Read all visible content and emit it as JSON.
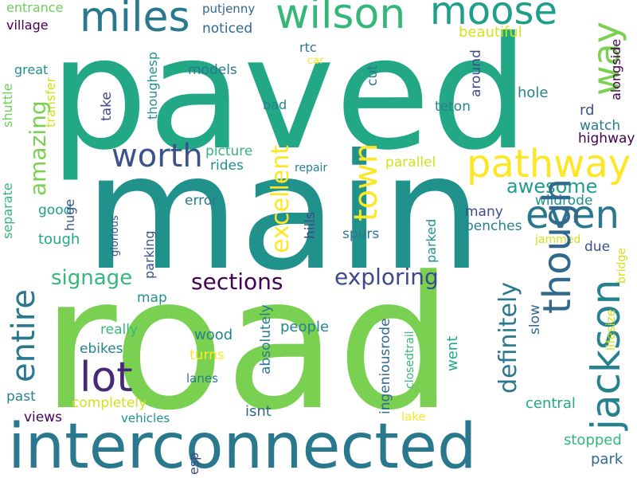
{
  "words": [
    {
      "id": "paved",
      "text": "paved",
      "color": "#22a884"
    },
    {
      "id": "main",
      "text": "main",
      "color": "#21918c"
    },
    {
      "id": "road",
      "text": "road",
      "color": "#7ad151"
    },
    {
      "id": "interconnected",
      "text": "interconnected",
      "color": "#2a788e"
    },
    {
      "id": "wilson",
      "text": "wilson",
      "color": "#35b779"
    },
    {
      "id": "miles",
      "text": "miles",
      "color": "#2a788e"
    },
    {
      "id": "moose",
      "text": "moose",
      "color": "#1f9e89"
    },
    {
      "id": "way",
      "text": "way",
      "color": "#7ad151"
    },
    {
      "id": "pathway",
      "text": "pathway",
      "color": "#fde725"
    },
    {
      "id": "even",
      "text": "even",
      "color": "#2a788e"
    },
    {
      "id": "worth",
      "text": "worth",
      "color": "#3b528b"
    },
    {
      "id": "town",
      "text": "town",
      "color": "#fde725"
    },
    {
      "id": "amazing",
      "text": "amazing",
      "color": "#7ad151"
    },
    {
      "id": "entire",
      "text": "entire",
      "color": "#2a788e"
    },
    {
      "id": "lot",
      "text": "lot",
      "color": "#482878"
    },
    {
      "id": "signage",
      "text": "signage",
      "color": "#35b779"
    },
    {
      "id": "sections",
      "text": "sections",
      "color": "#440154"
    },
    {
      "id": "exploring",
      "text": "exploring",
      "color": "#3e4989"
    },
    {
      "id": "excellent",
      "text": "excellent",
      "color": "#fde725"
    },
    {
      "id": "awesome",
      "text": "awesome",
      "color": "#1f9e89"
    },
    {
      "id": "though",
      "text": "though",
      "color": "#31688e"
    },
    {
      "id": "definitely",
      "text": "definitely",
      "color": "#2a788e"
    },
    {
      "id": "jackson",
      "text": "jackson",
      "color": "#26828e"
    },
    {
      "id": "entrance",
      "text": "entrance",
      "color": "#6ece58"
    },
    {
      "id": "village",
      "text": "village",
      "color": "#440154"
    },
    {
      "id": "great",
      "text": "great",
      "color": "#21918c"
    },
    {
      "id": "shuttle",
      "text": "shuttle",
      "color": "#6ece58"
    },
    {
      "id": "transfer",
      "text": "transfer",
      "color": "#d2e21b"
    },
    {
      "id": "models",
      "text": "models",
      "color": "#2a788e"
    },
    {
      "id": "take",
      "text": "take",
      "color": "#3e4989"
    },
    {
      "id": "thoughesp",
      "text": "thoughesp",
      "color": "#21918c"
    },
    {
      "id": "putjenny",
      "text": "putjenny",
      "color": "#31688e"
    },
    {
      "id": "noticed",
      "text": "noticed",
      "color": "#31688e"
    },
    {
      "id": "rtc",
      "text": "rtc",
      "color": "#2a788e"
    },
    {
      "id": "car",
      "text": "car",
      "color": "#fde725"
    },
    {
      "id": "cut",
      "text": "cut",
      "color": "#2a788e"
    },
    {
      "id": "bad",
      "text": "bad",
      "color": "#26828e"
    },
    {
      "id": "beautiful",
      "text": "beautiful",
      "color": "#d2e21b"
    },
    {
      "id": "around",
      "text": "around",
      "color": "#3e4989"
    },
    {
      "id": "alongside",
      "text": "alongside",
      "color": "#440154"
    },
    {
      "id": "hole",
      "text": "hole",
      "color": "#26828e"
    },
    {
      "id": "teton",
      "text": "teton",
      "color": "#26828e"
    },
    {
      "id": "rd",
      "text": "rd",
      "color": "#3b528b"
    },
    {
      "id": "watch",
      "text": "watch",
      "color": "#2a788e"
    },
    {
      "id": "highway",
      "text": "highway",
      "color": "#440154"
    },
    {
      "id": "picture",
      "text": "picture",
      "color": "#35b779"
    },
    {
      "id": "rides",
      "text": "rides",
      "color": "#21918c"
    },
    {
      "id": "repair",
      "text": "repair",
      "color": "#26828e"
    },
    {
      "id": "parallel",
      "text": "parallel",
      "color": "#d2e21b"
    },
    {
      "id": "separate",
      "text": "separate",
      "color": "#35b779"
    },
    {
      "id": "good",
      "text": "good",
      "color": "#1f9e89"
    },
    {
      "id": "huge",
      "text": "huge",
      "color": "#3b528b"
    },
    {
      "id": "glorious",
      "text": "glorious",
      "color": "#3b528b"
    },
    {
      "id": "parking",
      "text": "parking",
      "color": "#3b528b"
    },
    {
      "id": "error",
      "text": "error",
      "color": "#2a788e"
    },
    {
      "id": "hills",
      "text": "hills",
      "color": "#3e4989"
    },
    {
      "id": "parked",
      "text": "parked",
      "color": "#21918c"
    },
    {
      "id": "wildrode",
      "text": "wildrode",
      "color": "#21918c"
    },
    {
      "id": "many",
      "text": "many",
      "color": "#3e4989"
    },
    {
      "id": "benches",
      "text": "benches",
      "color": "#26828e"
    },
    {
      "id": "spurs",
      "text": "spurs",
      "color": "#2a788e"
    },
    {
      "id": "tough",
      "text": "tough",
      "color": "#22a884"
    },
    {
      "id": "jammed",
      "text": "jammed",
      "color": "#d2e21b"
    },
    {
      "id": "due",
      "text": "due",
      "color": "#3b528b"
    },
    {
      "id": "bridge",
      "text": "bridge",
      "color": "#d2e21b"
    },
    {
      "id": "map",
      "text": "map",
      "color": "#21918c"
    },
    {
      "id": "absolutely",
      "text": "absolutely",
      "color": "#2a788e"
    },
    {
      "id": "people",
      "text": "people",
      "color": "#26828e"
    },
    {
      "id": "slow",
      "text": "slow",
      "color": "#31688e"
    },
    {
      "id": "lifesize",
      "text": "lifesize",
      "color": "#d2e21b"
    },
    {
      "id": "really",
      "text": "really",
      "color": "#35b779"
    },
    {
      "id": "wood",
      "text": "wood",
      "color": "#26828e"
    },
    {
      "id": "turns",
      "text": "turns",
      "color": "#fde725"
    },
    {
      "id": "ebikes",
      "text": "ebikes",
      "color": "#26828e"
    },
    {
      "id": "lanes",
      "text": "lanes",
      "color": "#2a788e"
    },
    {
      "id": "ingeniousrode",
      "text": "ingeniousrode",
      "color": "#31688e"
    },
    {
      "id": "closedtrail",
      "text": "closedtrail",
      "color": "#35b779"
    },
    {
      "id": "went",
      "text": "went",
      "color": "#22a884"
    },
    {
      "id": "past",
      "text": "past",
      "color": "#26828e"
    },
    {
      "id": "completely",
      "text": "completely",
      "color": "#d2e21b"
    },
    {
      "id": "central",
      "text": "central",
      "color": "#22a884"
    },
    {
      "id": "views",
      "text": "views",
      "color": "#440154"
    },
    {
      "id": "vehicles",
      "text": "vehicles",
      "color": "#21918c"
    },
    {
      "id": "isnt",
      "text": "isnt",
      "color": "#31688e"
    },
    {
      "id": "lake",
      "text": "lake",
      "color": "#fde725"
    },
    {
      "id": "stopped",
      "text": "stopped",
      "color": "#35b779"
    },
    {
      "id": "esp",
      "text": "esp",
      "color": "#3e4989"
    },
    {
      "id": "park",
      "text": "park",
      "color": "#31688e"
    }
  ]
}
